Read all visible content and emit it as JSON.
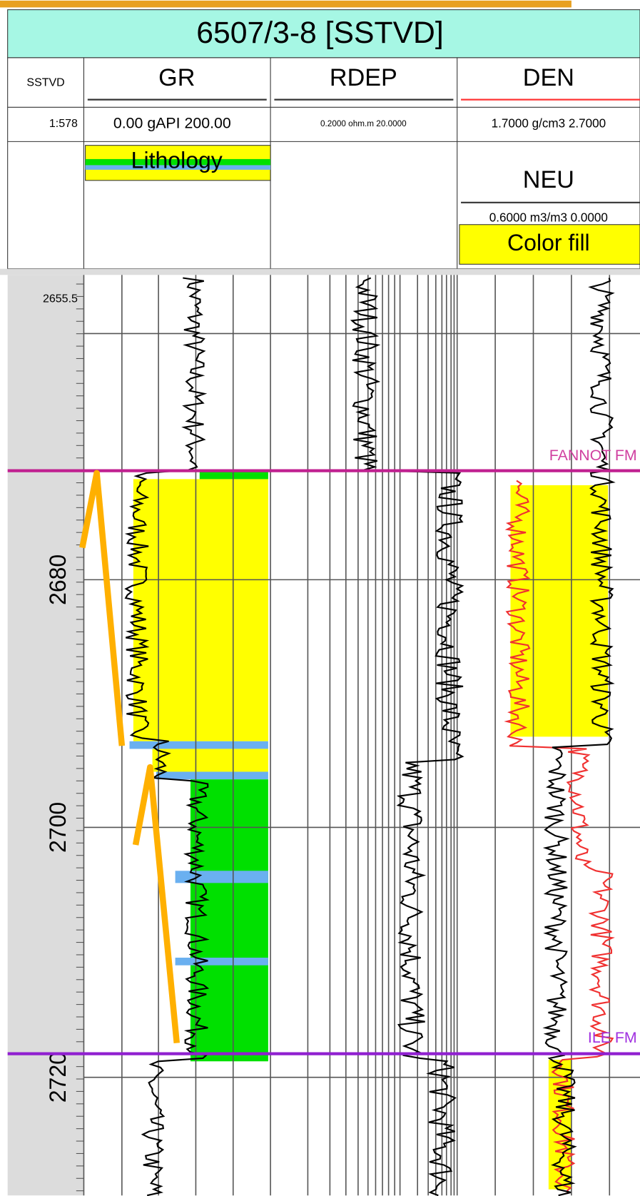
{
  "title": "6507/3-8 [SSTVD]",
  "depth_track": {
    "name": "SSTVD",
    "scale": "1:578",
    "top_depth": "2655.5",
    "depth_labels": [
      "2680",
      "2700",
      "2720"
    ]
  },
  "tracks": [
    {
      "name": "GR",
      "range": "0.00 gAPI 200.00",
      "fill": "Lithology"
    },
    {
      "name": "RDEP",
      "range": "0.2000 ohm.m 20.0000"
    },
    {
      "name": "DEN",
      "range": "1.7000 g/cm3 2.7000",
      "second": "NEU",
      "second_range": "0.6000 m3/m3 0.0000",
      "fill": "Color fill"
    }
  ],
  "formations": [
    "FANNOT FM",
    "ILE FM"
  ]
}
